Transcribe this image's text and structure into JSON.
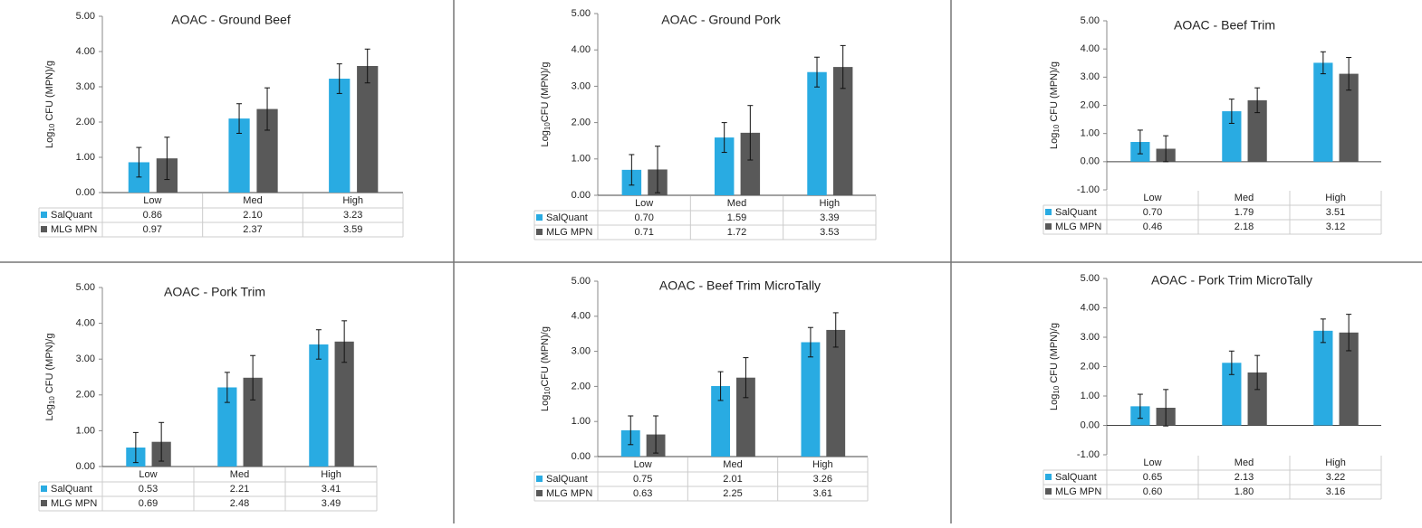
{
  "chart_data": [
    {
      "type": "bar",
      "title": "AOAC - Ground Beef",
      "y_label": [
        "Log",
        "10",
        " CFU (MPN)/g"
      ],
      "categories": [
        "Low",
        "Med",
        "High"
      ],
      "series": [
        {
          "name": "SalQuant",
          "color": "#29abe2",
          "values": [
            0.86,
            2.1,
            3.23
          ],
          "value_labels": [
            "0.86",
            "2.10",
            "3.23"
          ],
          "errors": [
            0.42,
            0.42,
            0.42
          ]
        },
        {
          "name": "MLG MPN",
          "color": "#595959",
          "values": [
            0.97,
            2.37,
            3.59
          ],
          "value_labels": [
            "0.97",
            "2.37",
            "3.59"
          ],
          "errors": [
            0.6,
            0.6,
            0.48
          ]
        }
      ],
      "ylim": [
        0,
        5
      ],
      "yticks": [
        {
          "value": 0,
          "label": "0.00"
        },
        {
          "value": 1,
          "label": "1.00"
        },
        {
          "value": 2,
          "label": "2.00"
        },
        {
          "value": 3,
          "label": "3.00"
        },
        {
          "value": 4,
          "label": "4.00"
        },
        {
          "value": 5,
          "label": "5.00"
        }
      ]
    },
    {
      "type": "bar",
      "title": "AOAC - Ground Pork",
      "y_label": [
        "Log",
        "10",
        "CFU (MPN)/g"
      ],
      "categories": [
        "Low",
        "Med",
        "High"
      ],
      "series": [
        {
          "name": "SalQuant",
          "color": "#29abe2",
          "values": [
            0.7,
            1.59,
            3.39
          ],
          "value_labels": [
            "0.70",
            "1.59",
            "3.39"
          ],
          "errors": [
            0.42,
            0.41,
            0.41
          ]
        },
        {
          "name": "MLG MPN",
          "color": "#595959",
          "values": [
            0.71,
            1.72,
            3.53
          ],
          "value_labels": [
            "0.71",
            "1.72",
            "3.53"
          ],
          "errors": [
            0.64,
            0.75,
            0.59
          ]
        }
      ],
      "ylim": [
        0,
        5
      ],
      "yticks": [
        {
          "value": 0,
          "label": "0.00"
        },
        {
          "value": 1,
          "label": "1.00"
        },
        {
          "value": 2,
          "label": "2.00"
        },
        {
          "value": 3,
          "label": "3.00"
        },
        {
          "value": 4,
          "label": "4.00"
        },
        {
          "value": 5,
          "label": "5.00"
        }
      ]
    },
    {
      "type": "bar",
      "title": "AOAC - Beef Trim",
      "y_label": [
        "Log",
        "10",
        " CFU (MPN)/g"
      ],
      "categories": [
        "Low",
        "Med",
        "High"
      ],
      "series": [
        {
          "name": "SalQuant",
          "color": "#29abe2",
          "values": [
            0.7,
            1.79,
            3.51
          ],
          "value_labels": [
            "0.70",
            "1.79",
            "3.51"
          ],
          "errors": [
            0.42,
            0.43,
            0.39
          ]
        },
        {
          "name": "MLG MPN",
          "color": "#595959",
          "values": [
            0.46,
            2.18,
            3.12
          ],
          "value_labels": [
            "0.46",
            "2.18",
            "3.12"
          ],
          "errors": [
            0.46,
            0.44,
            0.58
          ]
        }
      ],
      "ylim": [
        -1,
        5
      ],
      "yticks": [
        {
          "value": -1,
          "label": "-1.00"
        },
        {
          "value": 0,
          "label": "0.00"
        },
        {
          "value": 1,
          "label": "1.00"
        },
        {
          "value": 2,
          "label": "2.00"
        },
        {
          "value": 3,
          "label": "3.00"
        },
        {
          "value": 4,
          "label": "4.00"
        },
        {
          "value": 5,
          "label": "5.00"
        }
      ]
    },
    {
      "type": "bar",
      "title": "AOAC - Pork Trim",
      "y_label": [
        "Log",
        "10",
        " CFU (MPN)/g"
      ],
      "categories": [
        "Low",
        "Med",
        "High"
      ],
      "series": [
        {
          "name": "SalQuant",
          "color": "#29abe2",
          "values": [
            0.53,
            2.21,
            3.41
          ],
          "value_labels": [
            "0.53",
            "2.21",
            "3.41"
          ],
          "errors": [
            0.42,
            0.42,
            0.41
          ]
        },
        {
          "name": "MLG MPN",
          "color": "#595959",
          "values": [
            0.69,
            2.48,
            3.49
          ],
          "value_labels": [
            "0.69",
            "2.48",
            "3.49"
          ],
          "errors": [
            0.54,
            0.62,
            0.58
          ]
        }
      ],
      "ylim": [
        0,
        5
      ],
      "yticks": [
        {
          "value": 0,
          "label": "0.00"
        },
        {
          "value": 1,
          "label": "1.00"
        },
        {
          "value": 2,
          "label": "2.00"
        },
        {
          "value": 3,
          "label": "3.00"
        },
        {
          "value": 4,
          "label": "4.00"
        },
        {
          "value": 5,
          "label": "5.00"
        }
      ]
    },
    {
      "type": "bar",
      "title": "AOAC - Beef Trim MicroTally",
      "y_label": [
        "Log",
        "10",
        "CFU (MPN)/g"
      ],
      "categories": [
        "Low",
        "Med",
        "High"
      ],
      "series": [
        {
          "name": "SalQuant",
          "color": "#29abe2",
          "values": [
            0.75,
            2.01,
            3.26
          ],
          "value_labels": [
            "0.75",
            "2.01",
            "3.26"
          ],
          "errors": [
            0.41,
            0.41,
            0.42
          ]
        },
        {
          "name": "MLG MPN",
          "color": "#595959",
          "values": [
            0.63,
            2.25,
            3.61
          ],
          "value_labels": [
            "0.63",
            "2.25",
            "3.61"
          ],
          "errors": [
            0.53,
            0.57,
            0.49
          ]
        }
      ],
      "ylim": [
        0,
        5
      ],
      "yticks": [
        {
          "value": 0,
          "label": "0.00"
        },
        {
          "value": 1,
          "label": "1.00"
        },
        {
          "value": 2,
          "label": "2.00"
        },
        {
          "value": 3,
          "label": "3.00"
        },
        {
          "value": 4,
          "label": "4.00"
        },
        {
          "value": 5,
          "label": "5.00"
        }
      ]
    },
    {
      "type": "bar",
      "title": "AOAC - Pork Trim MicroTally",
      "y_label": [
        "Log",
        "10",
        " CFU (MPN)/g"
      ],
      "categories": [
        "Low",
        "Med",
        "High"
      ],
      "series": [
        {
          "name": "SalQuant",
          "color": "#29abe2",
          "values": [
            0.65,
            2.13,
            3.22
          ],
          "value_labels": [
            "0.65",
            "2.13",
            "3.22"
          ],
          "errors": [
            0.41,
            0.4,
            0.4
          ]
        },
        {
          "name": "MLG MPN",
          "color": "#595959",
          "values": [
            0.6,
            1.8,
            3.16
          ],
          "value_labels": [
            "0.60",
            "1.80",
            "3.16"
          ],
          "errors": [
            0.62,
            0.58,
            0.62
          ]
        }
      ],
      "ylim": [
        -1,
        5
      ],
      "yticks": [
        {
          "value": -1,
          "label": "-1.00"
        },
        {
          "value": 0,
          "label": "0.00"
        },
        {
          "value": 1,
          "label": "1.00"
        },
        {
          "value": 2,
          "label": "2.00"
        },
        {
          "value": 3,
          "label": "3.00"
        },
        {
          "value": 4,
          "label": "4.00"
        },
        {
          "value": 5,
          "label": "5.00"
        }
      ]
    }
  ]
}
